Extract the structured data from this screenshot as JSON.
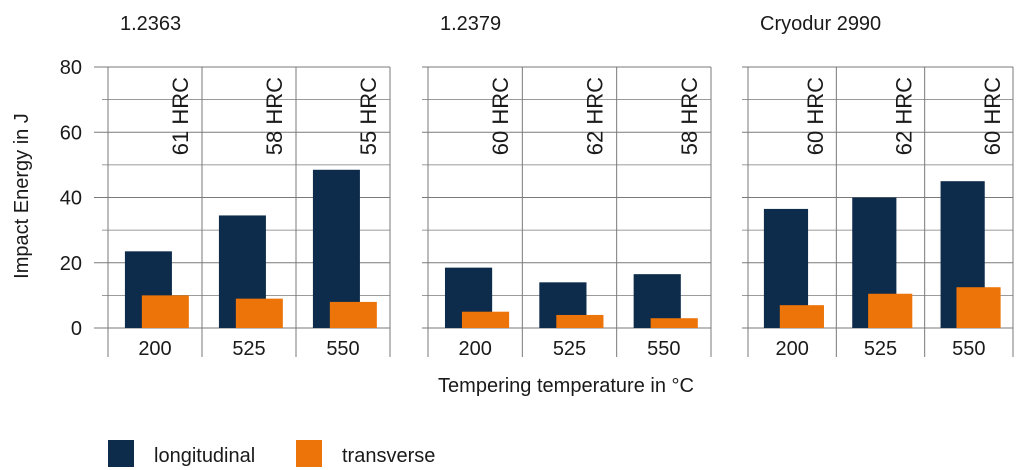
{
  "chart_data": {
    "type": "bar",
    "ylabel": "Impact Energy in J",
    "xlabel": "Tempering temperature in °C",
    "ylim": [
      0,
      80
    ],
    "yticks": [
      0,
      20,
      40,
      60,
      80
    ],
    "grid": true,
    "legend_position": "bottom-left",
    "colors": {
      "longitudinal": "#0d2b4a",
      "transverse": "#ec7408",
      "grid": "#7a7a7a"
    },
    "series_names": [
      "longitudinal",
      "transverse"
    ],
    "panels": [
      {
        "title": "1.2363",
        "categories": [
          "200",
          "525",
          "550"
        ],
        "series": [
          {
            "name": "longitudinal",
            "values": [
              23.5,
              34.5,
              48.5
            ]
          },
          {
            "name": "transverse",
            "values": [
              10,
              9,
              8
            ]
          }
        ],
        "hardness": [
          "61 HRC",
          "58 HRC",
          "55 HRC"
        ]
      },
      {
        "title": "1.2379",
        "categories": [
          "200",
          "525",
          "550"
        ],
        "series": [
          {
            "name": "longitudinal",
            "values": [
              18.5,
              14,
              16.5
            ]
          },
          {
            "name": "transverse",
            "values": [
              5,
              4,
              3
            ]
          }
        ],
        "hardness": [
          "60 HRC",
          "62 HRC",
          "58 HRC"
        ]
      },
      {
        "title": "Cryodur 2990",
        "categories": [
          "200",
          "525",
          "550"
        ],
        "series": [
          {
            "name": "longitudinal",
            "values": [
              36.5,
              40,
              45
            ]
          },
          {
            "name": "transverse",
            "values": [
              7,
              10.5,
              12.5
            ]
          }
        ],
        "hardness": [
          "60 HRC",
          "62 HRC",
          "60 HRC"
        ]
      }
    ]
  }
}
